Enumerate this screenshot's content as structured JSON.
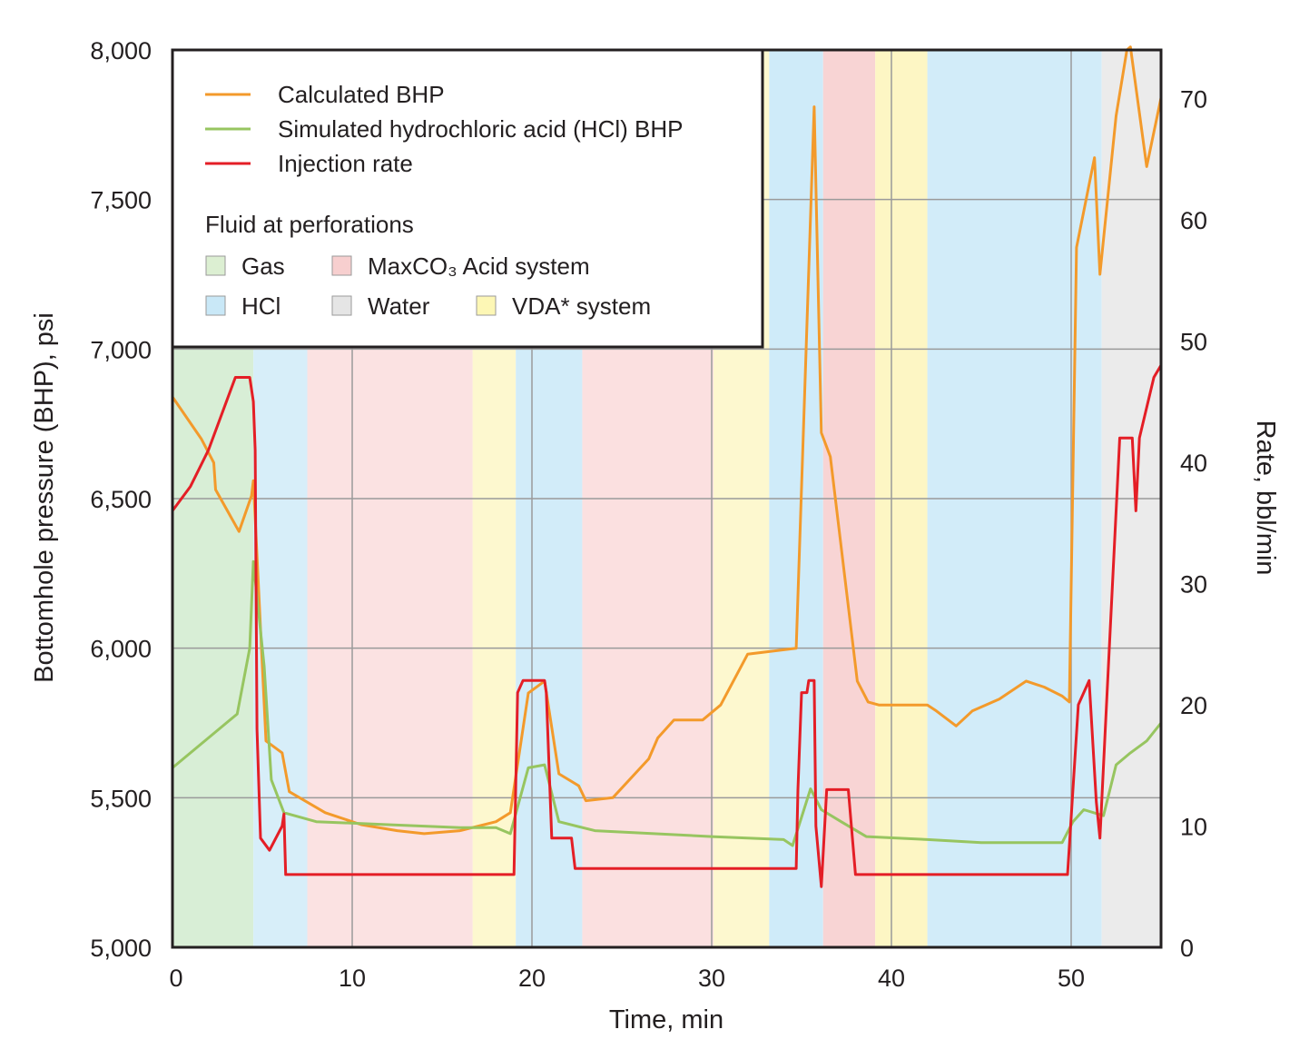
{
  "chart_data": {
    "type": "line",
    "title": "",
    "xlabel": "Time, min",
    "ylabel_left": "Bottomhole pressure (BHP), psi",
    "ylabel_right": "Rate, bbl/min",
    "xlim": [
      0,
      55
    ],
    "ylim_left": [
      5000,
      8000
    ],
    "ylim_right": [
      0,
      74
    ],
    "x_ticks": [
      0,
      10,
      20,
      30,
      40,
      50
    ],
    "x_tick_labels": [
      "0",
      "10",
      "20",
      "30",
      "40",
      "50"
    ],
    "y_left_ticks": [
      5000,
      5500,
      6000,
      6500,
      7000,
      7500,
      8000
    ],
    "y_left_tick_labels": [
      "5,000",
      "5,500",
      "6,000",
      "6,500",
      "7,000",
      "7,500",
      "8,000"
    ],
    "y_right_ticks": [
      0,
      10,
      20,
      30,
      40,
      50,
      60,
      70
    ],
    "y_right_tick_labels": [
      "0",
      "10",
      "20",
      "30",
      "40",
      "50",
      "60",
      "70"
    ],
    "grid": true,
    "legend": {
      "placement": "top-left",
      "lines": [
        {
          "name": "Calculated BHP",
          "color": "#f39a2b"
        },
        {
          "name": "Simulated hydrochloric acid (HCl) BHP",
          "color": "#97c560"
        },
        {
          "name": "Injection rate",
          "color": "#e41e26"
        }
      ],
      "fluid_title": "Fluid at perforations",
      "fluids": [
        {
          "name": "Gas",
          "color": "#dcefd2"
        },
        {
          "name": "MaxCO₃ Acid system",
          "color": "#f7cfcf"
        },
        {
          "name": "HCl",
          "color": "#c9e8f7"
        },
        {
          "name": "Water",
          "color": "#e5e5e5"
        },
        {
          "name": "VDA* system",
          "color": "#fdf7b5"
        }
      ]
    },
    "fluid_zones": [
      {
        "fluid": "Gas",
        "x0": 0,
        "x1": 4.5,
        "color": "#d8eed6"
      },
      {
        "fluid": "HCl",
        "x0": 4.5,
        "x1": 7.5,
        "color": "#d7eef9"
      },
      {
        "fluid": "MaxCO3 Acid system",
        "x0": 7.5,
        "x1": 16.7,
        "color": "#fbe2e2"
      },
      {
        "fluid": "VDA* system",
        "x0": 16.7,
        "x1": 19.1,
        "color": "#fdf8cf"
      },
      {
        "fluid": "HCl",
        "x0": 19.1,
        "x1": 22.8,
        "color": "#d2ecf9"
      },
      {
        "fluid": "MaxCO3 Acid system",
        "x0": 22.8,
        "x1": 30.1,
        "color": "#fbe0e0"
      },
      {
        "fluid": "VDA* system",
        "x0": 30.1,
        "x1": 33.2,
        "color": "#fdf8cf"
      },
      {
        "fluid": "HCl",
        "x0": 33.2,
        "x1": 36.2,
        "color": "#cfebf9"
      },
      {
        "fluid": "MaxCO3 Acid system",
        "x0": 36.2,
        "x1": 39.1,
        "color": "#f8d4d4"
      },
      {
        "fluid": "VDA* system",
        "x0": 39.1,
        "x1": 42.0,
        "color": "#fdf6c4"
      },
      {
        "fluid": "HCl",
        "x0": 42.0,
        "x1": 51.7,
        "color": "#d2ecf9"
      },
      {
        "fluid": "Water",
        "x0": 51.7,
        "x1": 55,
        "color": "#ebebeb"
      }
    ],
    "series": [
      {
        "name": "Calculated BHP",
        "axis": "left",
        "color": "#f39a2b",
        "x": [
          0,
          1.6,
          2.3,
          2.4,
          3.7,
          4.4,
          4.5,
          5.2,
          6.1,
          6.5,
          8.5,
          10.5,
          12.5,
          14,
          16,
          18,
          18.8,
          19.8,
          20.7,
          21.5,
          22.6,
          23,
          24.5,
          26.5,
          27,
          27.9,
          29.5,
          30.5,
          32,
          34.7,
          35.7,
          36.1,
          36.6,
          38.1,
          38.7,
          39.3,
          42,
          42.5,
          43.6,
          44.5,
          46,
          47.5,
          48.5,
          49.5,
          49.9,
          50.3,
          51.3,
          51.6,
          52.5,
          53.1,
          53.3,
          54.2,
          55
        ],
        "y": [
          6840,
          6700,
          6620,
          6530,
          6390,
          6510,
          6560,
          5690,
          5650,
          5520,
          5450,
          5410,
          5390,
          5380,
          5390,
          5420,
          5450,
          5850,
          5890,
          5580,
          5540,
          5490,
          5500,
          5630,
          5700,
          5760,
          5760,
          5810,
          5980,
          6000,
          7810,
          6720,
          6640,
          5890,
          5820,
          5810,
          5810,
          5790,
          5740,
          5790,
          5830,
          5890,
          5870,
          5840,
          5820,
          7340,
          7640,
          7250,
          7780,
          8000,
          8010,
          7610,
          7840
        ]
      },
      {
        "name": "Simulated hydrochloric acid (HCl) BHP",
        "axis": "left",
        "color": "#97c560",
        "x": [
          0,
          3.6,
          4.3,
          4.5,
          5.1,
          5.5,
          6.2,
          8,
          12,
          16,
          18,
          18.8,
          19.8,
          20.7,
          21.5,
          23.5,
          30,
          34,
          34.5,
          35.5,
          36.1,
          37.2,
          38.6,
          42,
          45,
          49.5,
          50.1,
          50.7,
          51.8,
          52.5,
          53.3,
          54.2,
          55
        ],
        "y": [
          5600,
          5780,
          6000,
          6290,
          5940,
          5560,
          5450,
          5420,
          5410,
          5400,
          5400,
          5380,
          5600,
          5610,
          5420,
          5390,
          5370,
          5360,
          5340,
          5530,
          5460,
          5420,
          5370,
          5360,
          5350,
          5350,
          5420,
          5460,
          5440,
          5610,
          5650,
          5690,
          5750
        ]
      },
      {
        "name": "Injection rate",
        "axis": "right",
        "color": "#e41e26",
        "x": [
          0,
          1,
          2,
          3,
          3.5,
          3.9,
          4.3,
          4.5,
          4.6,
          4.7,
          4.9,
          5.4,
          6.1,
          6.2,
          6.3,
          6.4,
          10,
          19,
          19.2,
          19.5,
          20.6,
          20.7,
          20.8,
          21.1,
          21.9,
          22.2,
          22.4,
          25,
          30,
          34.7,
          34.8,
          35.0,
          35.3,
          35.4,
          35.7,
          35.8,
          36.1,
          36.4,
          36.6,
          37.3,
          37.4,
          37.6,
          38,
          45,
          49.5,
          49.8,
          50.4,
          51.0,
          51.4,
          51.6,
          51.9,
          52.7,
          53.1,
          53.2,
          53.4,
          53.6,
          53.8,
          54.6,
          55
        ],
        "y": [
          36,
          38,
          41,
          45,
          47,
          47,
          47,
          45,
          41,
          18,
          9,
          8,
          10,
          11,
          6,
          6,
          6,
          6,
          21,
          22,
          22,
          22,
          21,
          9,
          9,
          9,
          6.5,
          6.5,
          6.5,
          6.5,
          13,
          21,
          21,
          22,
          22,
          10,
          5,
          13,
          13,
          13,
          13,
          13,
          6,
          6,
          6,
          6,
          20,
          22,
          12,
          9,
          18,
          42,
          42,
          42,
          42,
          36,
          42,
          47,
          48
        ]
      }
    ]
  }
}
